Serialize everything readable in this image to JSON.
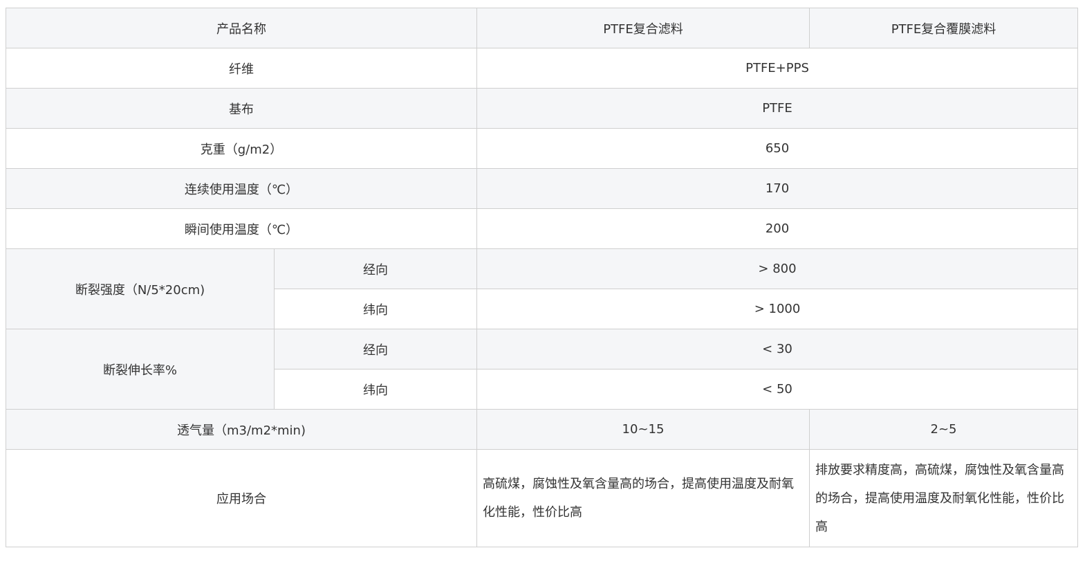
{
  "header": {
    "product_name": "产品名称",
    "product_a": "PTFE复合滤料",
    "product_b": "PTFE复合覆膜滤料"
  },
  "rows": {
    "fiber": {
      "label": "纤维",
      "value": "PTFE+PPS"
    },
    "base": {
      "label": "基布",
      "value": "PTFE"
    },
    "weight": {
      "label": "克重（g/m2）",
      "value": "650"
    },
    "cont_temp": {
      "label": "连续使用温度（℃）",
      "value": "170"
    },
    "inst_temp": {
      "label": "瞬间使用温度（℃）",
      "value": "200"
    },
    "strength": {
      "label": "断裂强度（N/5*20cm)",
      "warp_label": "经向",
      "warp": "> 800",
      "weft_label": "纬向",
      "weft": "> 1000"
    },
    "elongation": {
      "label": "断裂伸长率%",
      "warp_label": "经向",
      "warp": "< 30",
      "weft_label": "纬向",
      "weft": "< 50"
    },
    "permeability": {
      "label": "透气量（m3/m2*min)",
      "a": "10~15",
      "b": "2~5"
    },
    "application": {
      "label": "应用场合",
      "a": "高硫煤，腐蚀性及氧含量高的场合，提高使用温度及耐氧化性能，性价比高",
      "b": "排放要求精度高，高硫煤，腐蚀性及氧含量高的场合，提高使用温度及耐氧化性能，性价比高"
    }
  }
}
